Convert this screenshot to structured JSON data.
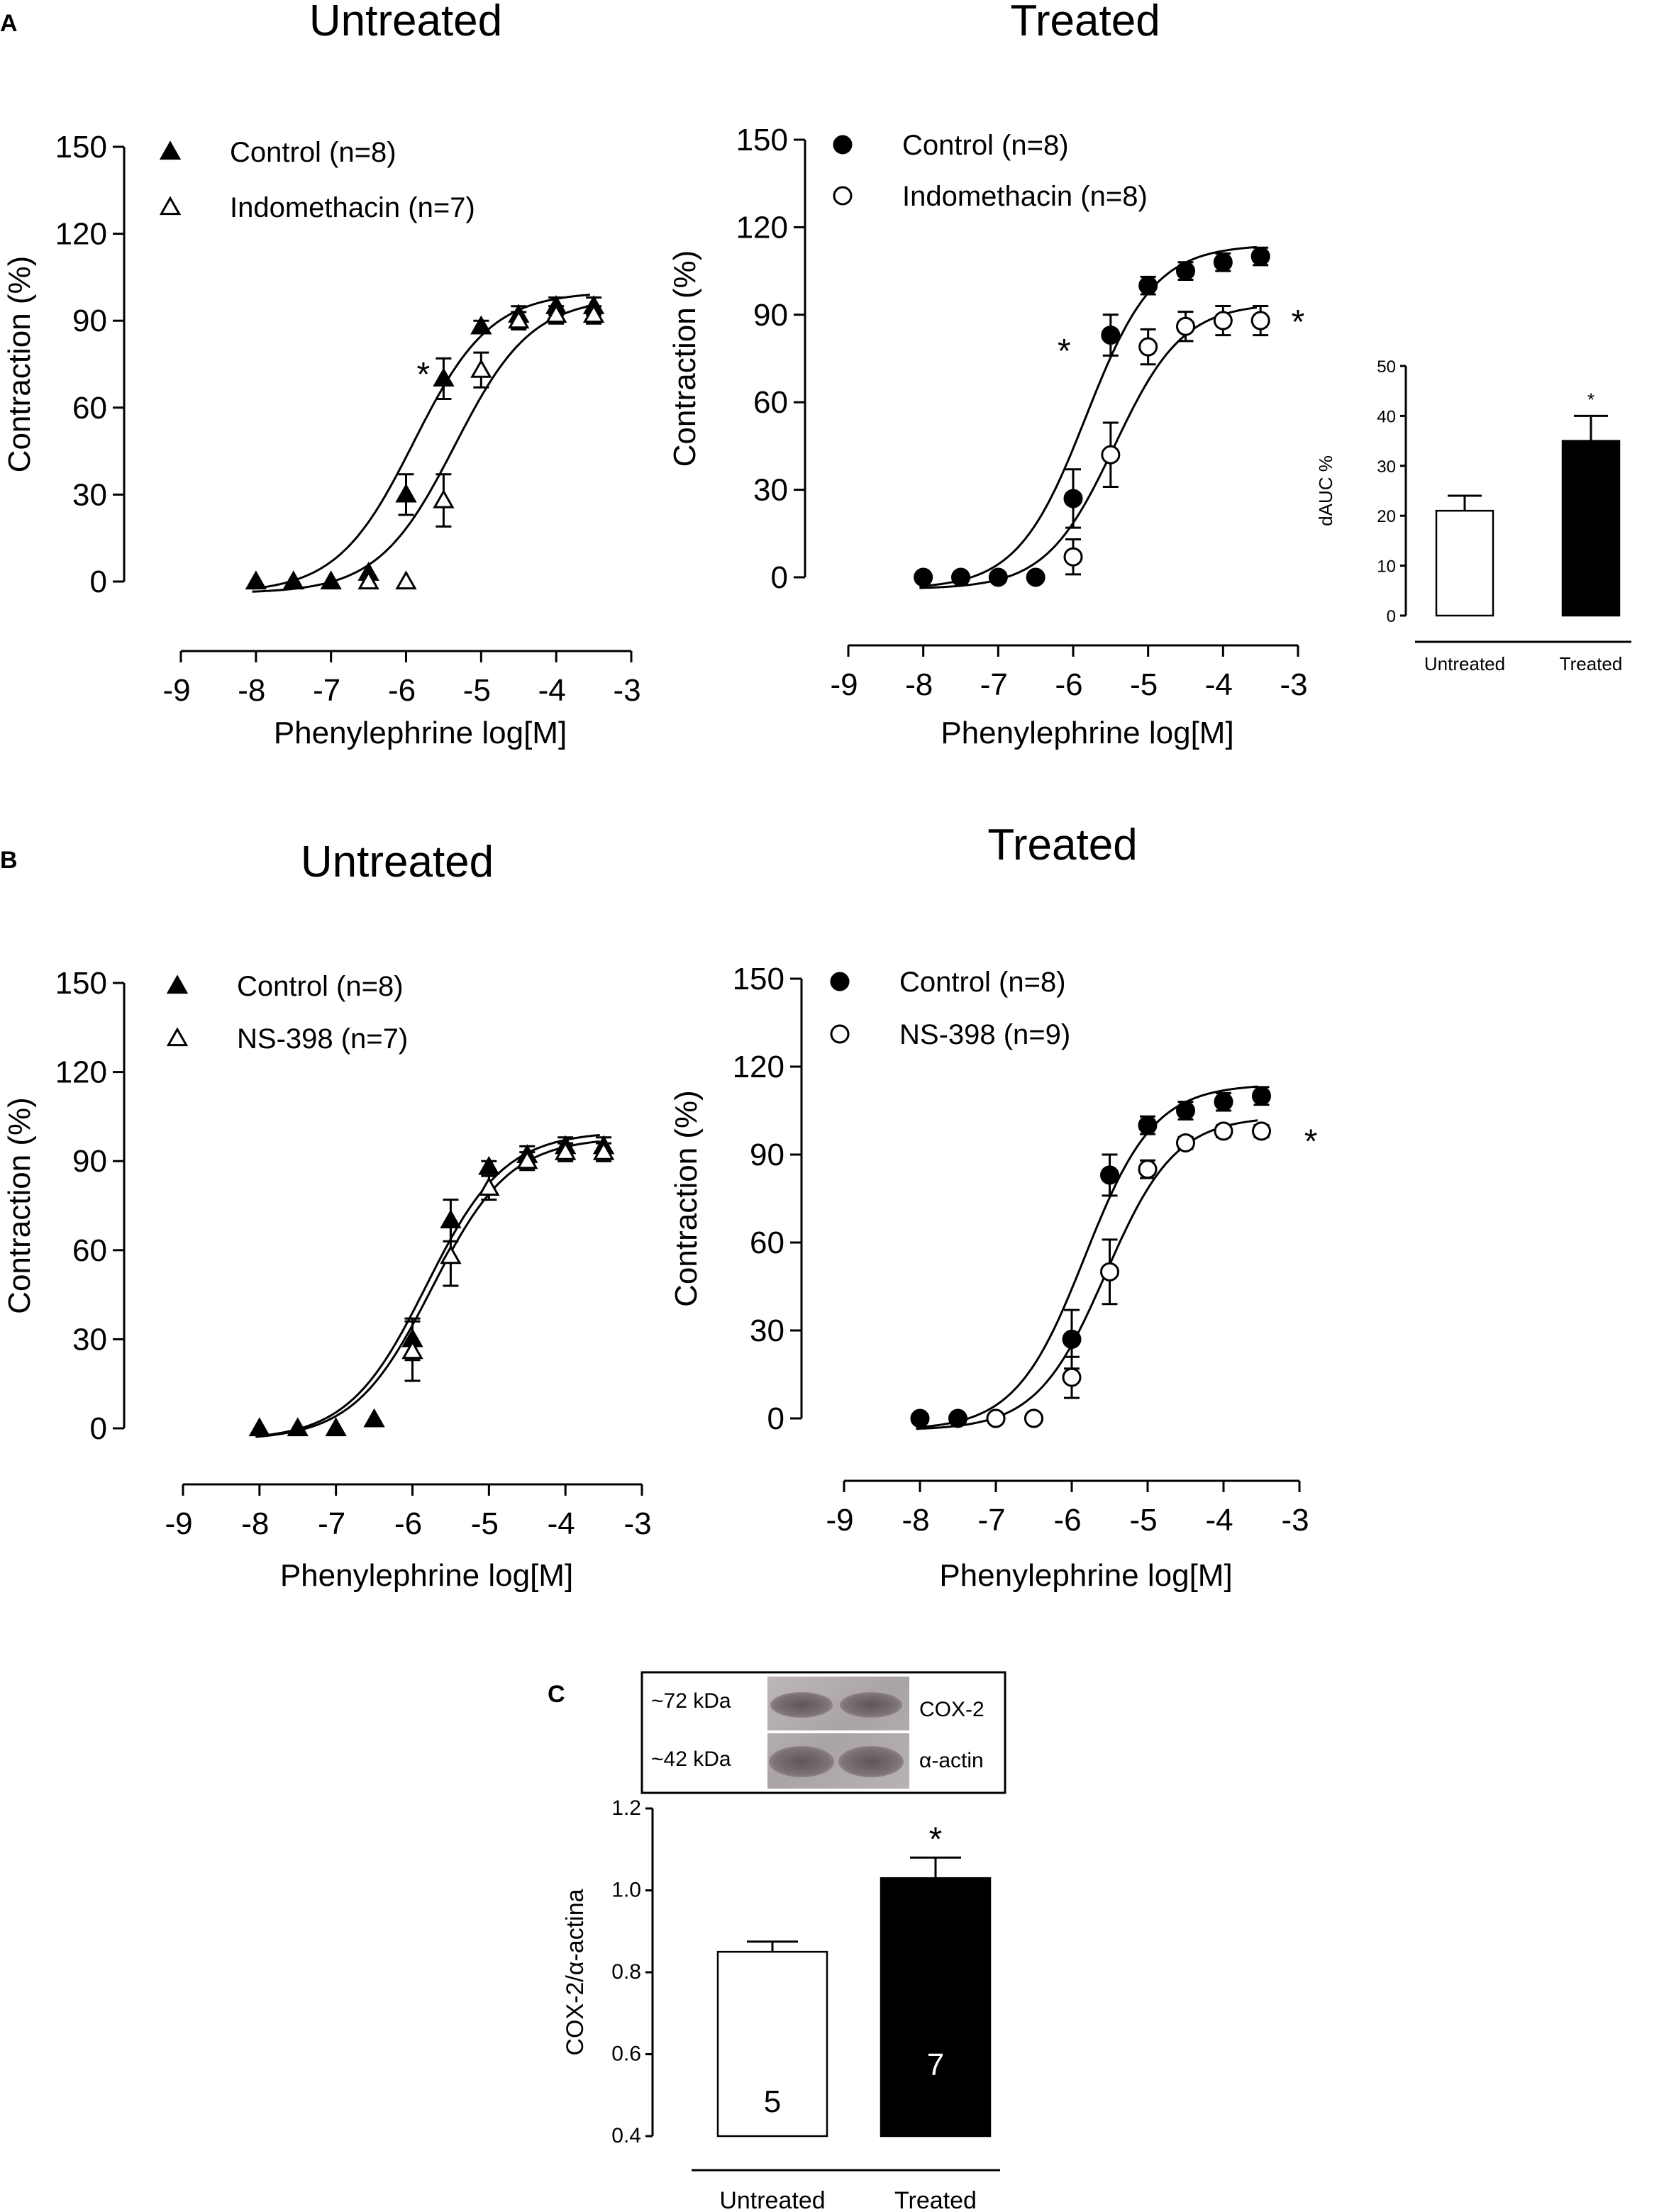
{
  "panels": {
    "A": "A",
    "B": "B",
    "C": "C"
  },
  "colors": {
    "ink": "#000000",
    "open_fill": "#ffffff"
  },
  "chart_data": [
    {
      "id": "A-untreated",
      "type": "line",
      "title": "Untreated",
      "xlabel": "Phenylephrine log[M]",
      "ylabel": "Contraction (%)",
      "xlim": [
        -9,
        -3
      ],
      "ylim": [
        0,
        150
      ],
      "xticks": [
        -9,
        -8,
        -7,
        -6,
        -5,
        -4,
        -3
      ],
      "yticks": [
        0,
        30,
        60,
        90,
        120,
        150
      ],
      "series": [
        {
          "name": "Control (n=8)",
          "marker": "triangle-filled",
          "x": [
            -8,
            -7.5,
            -7,
            -6.5,
            -6,
            -5.5,
            -5,
            -4.5,
            -4,
            -3.5
          ],
          "y": [
            0,
            0,
            0,
            3,
            30,
            70,
            88,
            92,
            95,
            95
          ],
          "err": [
            0,
            0,
            0,
            0,
            7,
            7,
            2,
            3,
            3,
            3
          ],
          "fit": {
            "bottom": -4,
            "top": 100,
            "logec50": -5.9,
            "hill": 0.85
          }
        },
        {
          "name": "Indomethacin (n=7)",
          "marker": "triangle-open",
          "x": [
            -6.5,
            -6,
            -5.5,
            -5,
            -4.5,
            -4,
            -3.5
          ],
          "y": [
            0,
            0,
            28,
            73,
            90,
            92,
            92
          ],
          "err": [
            0,
            0,
            9,
            6,
            3,
            3,
            3
          ],
          "fit": {
            "bottom": -4,
            "top": 98,
            "logec50": -5.35,
            "hill": 0.85
          }
        }
      ],
      "annotations": [
        {
          "text": "*",
          "x": -5.77,
          "y": 72
        }
      ]
    },
    {
      "id": "A-treated",
      "type": "line",
      "title": "Treated",
      "xlabel": "Phenylephrine log[M]",
      "ylabel": "Contraction (%)",
      "xlim": [
        -9,
        -3
      ],
      "ylim": [
        0,
        150
      ],
      "xticks": [
        -9,
        -8,
        -7,
        -6,
        -5,
        -4,
        -3
      ],
      "yticks": [
        0,
        30,
        60,
        90,
        120,
        150
      ],
      "series": [
        {
          "name": "Control (n=8)",
          "marker": "circle-filled",
          "x": [
            -8,
            -7.5,
            -7,
            -6.5,
            -6,
            -5.5,
            -5,
            -4.5,
            -4,
            -3.5
          ],
          "y": [
            0,
            0,
            0,
            0,
            27,
            83,
            100,
            105,
            108,
            110
          ],
          "err": [
            0,
            0,
            0,
            0,
            10,
            7,
            3,
            3,
            3,
            3
          ],
          "fit": {
            "bottom": -4,
            "top": 114,
            "logec50": -5.83,
            "hill": 0.95
          }
        },
        {
          "name": "Indomethacin (n=8)",
          "marker": "circle-open",
          "x": [
            -6,
            -5.5,
            -5,
            -4.5,
            -4,
            -3.5
          ],
          "y": [
            7,
            42,
            79,
            86,
            88,
            88
          ],
          "err": [
            6,
            11,
            6,
            5,
            5,
            5
          ],
          "fit": {
            "bottom": -4,
            "top": 94,
            "logec50": -5.45,
            "hill": 0.95
          }
        }
      ],
      "annotations": [
        {
          "text": "*",
          "x": -6.12,
          "y": 78
        },
        {
          "text": "*",
          "x": -3.0,
          "y": 88
        }
      ]
    },
    {
      "id": "A-dauc",
      "type": "bar",
      "ylabel": "dAUC %",
      "categories": [
        "Untreated",
        "Treated"
      ],
      "values": [
        21,
        35
      ],
      "err": [
        3,
        5
      ],
      "fills": [
        "#ffffff",
        "#000000"
      ],
      "ylim": [
        0,
        50
      ],
      "yticks": [
        0,
        10,
        20,
        30,
        40,
        50
      ],
      "annotations": [
        {
          "text": "*",
          "category": "Treated"
        }
      ]
    },
    {
      "id": "B-untreated",
      "type": "line",
      "title": "Untreated",
      "xlabel": "Phenylephrine log[M]",
      "ylabel": "Contraction (%)",
      "xlim": [
        -9,
        -3
      ],
      "ylim": [
        0,
        150
      ],
      "xticks": [
        -9,
        -8,
        -7,
        -6,
        -5,
        -4,
        -3
      ],
      "yticks": [
        0,
        30,
        60,
        90,
        120,
        150
      ],
      "series": [
        {
          "name": "Control (n=8)",
          "marker": "triangle-filled",
          "x": [
            -8,
            -7.5,
            -7,
            -6.5,
            -6,
            -5.5,
            -5,
            -4.5,
            -4,
            -3.5
          ],
          "y": [
            0,
            0,
            0,
            3,
            30,
            70,
            88,
            92,
            95,
            95
          ],
          "err": [
            0,
            0,
            0,
            0,
            7,
            7,
            2,
            3,
            3,
            3
          ],
          "fit": {
            "bottom": -4,
            "top": 100,
            "logec50": -5.82,
            "hill": 0.85
          }
        },
        {
          "name": "NS-398 (n=7)",
          "marker": "triangle-open",
          "x": [
            -6,
            -5.5,
            -5,
            -4.5,
            -4,
            -3.5
          ],
          "y": [
            26,
            58,
            81,
            90,
            93,
            93
          ],
          "err": [
            10,
            10,
            4,
            3,
            3,
            3
          ],
          "fit": {
            "bottom": -4,
            "top": 98,
            "logec50": -5.75,
            "hill": 0.85
          }
        }
      ],
      "annotations": []
    },
    {
      "id": "B-treated",
      "type": "line",
      "title": "Treated",
      "xlabel": "Phenylephrine log[M]",
      "ylabel": "Contraction (%)",
      "xlim": [
        -9,
        -3
      ],
      "ylim": [
        0,
        150
      ],
      "xticks": [
        -9,
        -8,
        -7,
        -6,
        -5,
        -4,
        -3
      ],
      "yticks": [
        0,
        30,
        60,
        90,
        120,
        150
      ],
      "series": [
        {
          "name": "Control (n=8)",
          "marker": "circle-filled",
          "x": [
            -8,
            -7.5,
            -7,
            -6.5,
            -6,
            -5.5,
            -5,
            -4.5,
            -4,
            -3.5
          ],
          "y": [
            0,
            0,
            0,
            0,
            27,
            83,
            100,
            105,
            108,
            110
          ],
          "err": [
            0,
            0,
            0,
            0,
            10,
            7,
            3,
            3,
            3,
            3
          ],
          "fit": {
            "bottom": -4,
            "top": 114,
            "logec50": -5.83,
            "hill": 0.95
          }
        },
        {
          "name": "NS-398 (n=9)",
          "marker": "circle-open",
          "x": [
            -7,
            -6.5,
            -6,
            -5.5,
            -5,
            -4.5,
            -4,
            -3.5
          ],
          "y": [
            0,
            0,
            14,
            50,
            85,
            94,
            98,
            98
          ],
          "err": [
            0,
            0,
            7,
            11,
            3,
            2,
            2,
            2
          ],
          "fit": {
            "bottom": -4,
            "top": 103,
            "logec50": -5.55,
            "hill": 0.95
          }
        }
      ],
      "annotations": [
        {
          "text": "*",
          "x": -2.85,
          "y": 95
        }
      ]
    },
    {
      "id": "C-cox2",
      "type": "bar",
      "ylabel": "COX-2/α-actina",
      "categories": [
        "Untreated",
        "Treated"
      ],
      "values": [
        0.85,
        1.03
      ],
      "err": [
        0.025,
        0.05
      ],
      "n_labels": [
        "5",
        "7"
      ],
      "fills": [
        "#ffffff",
        "#000000"
      ],
      "ylim": [
        0.4,
        1.2
      ],
      "yticks": [
        0.4,
        0.6,
        0.8,
        1.0,
        1.2
      ],
      "ytick_labels": [
        "0.4",
        "0.6",
        "0.8",
        "1.0",
        "1.2"
      ],
      "annotations": [
        {
          "text": "*",
          "category": "Treated"
        }
      ]
    }
  ],
  "blot": {
    "markers": [
      "~72 kDa",
      "~42 kDa"
    ],
    "proteins": [
      "COX-2",
      "α-actin"
    ]
  }
}
